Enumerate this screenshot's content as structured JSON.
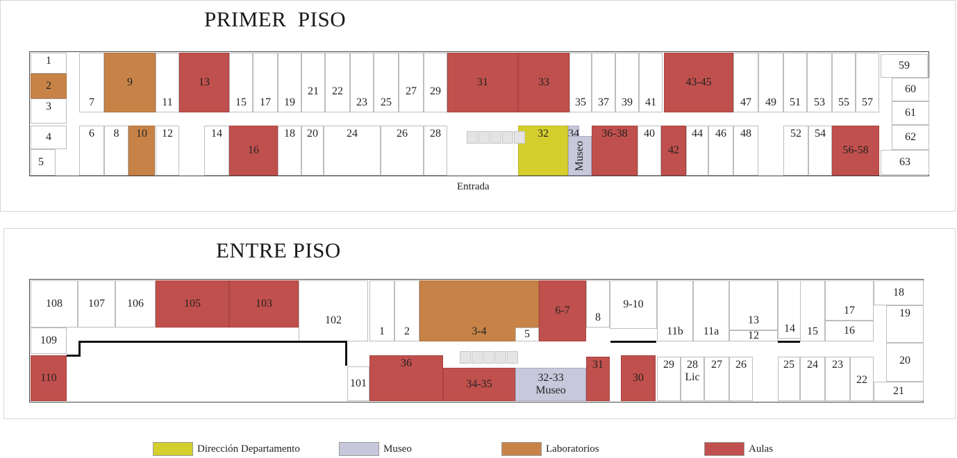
{
  "floors": [
    {
      "title": "PRIMER  PISO",
      "entrance_label": "Entrada",
      "rooms": [
        {
          "id": "p1-1",
          "label": "1",
          "type": "none"
        },
        {
          "id": "p1-2",
          "label": "2",
          "type": "lab"
        },
        {
          "id": "p1-3",
          "label": "3",
          "type": "none"
        },
        {
          "id": "p1-4",
          "label": "4",
          "type": "none"
        },
        {
          "id": "p1-5",
          "label": "5",
          "type": "none"
        },
        {
          "id": "p1-6",
          "label": "6",
          "type": "none"
        },
        {
          "id": "p1-7",
          "label": "7",
          "type": "none"
        },
        {
          "id": "p1-8",
          "label": "8",
          "type": "none"
        },
        {
          "id": "p1-9",
          "label": "9",
          "type": "lab"
        },
        {
          "id": "p1-10",
          "label": "10",
          "type": "lab"
        },
        {
          "id": "p1-11",
          "label": "11",
          "type": "none"
        },
        {
          "id": "p1-12",
          "label": "12",
          "type": "none"
        },
        {
          "id": "p1-13",
          "label": "13",
          "type": "aulas"
        },
        {
          "id": "p1-14",
          "label": "14",
          "type": "none"
        },
        {
          "id": "p1-15",
          "label": "15",
          "type": "none"
        },
        {
          "id": "p1-16",
          "label": "16",
          "type": "aulas"
        },
        {
          "id": "p1-17",
          "label": "17",
          "type": "none"
        },
        {
          "id": "p1-18",
          "label": "18",
          "type": "none"
        },
        {
          "id": "p1-19",
          "label": "19",
          "type": "none"
        },
        {
          "id": "p1-20",
          "label": "20",
          "type": "none"
        },
        {
          "id": "p1-21",
          "label": "21",
          "type": "none"
        },
        {
          "id": "p1-22",
          "label": "22",
          "type": "none"
        },
        {
          "id": "p1-23",
          "label": "23",
          "type": "none"
        },
        {
          "id": "p1-24",
          "label": "24",
          "type": "none"
        },
        {
          "id": "p1-25",
          "label": "25",
          "type": "none"
        },
        {
          "id": "p1-26",
          "label": "26",
          "type": "none"
        },
        {
          "id": "p1-27",
          "label": "27",
          "type": "none"
        },
        {
          "id": "p1-28",
          "label": "28",
          "type": "none"
        },
        {
          "id": "p1-29",
          "label": "29",
          "type": "none"
        },
        {
          "id": "p1-31",
          "label": "31",
          "type": "aulas"
        },
        {
          "id": "p1-32",
          "label": "32",
          "type": "dir"
        },
        {
          "id": "p1-33",
          "label": "33",
          "type": "aulas"
        },
        {
          "id": "p1-34",
          "label": "34",
          "type": "museo"
        },
        {
          "id": "p1-museo",
          "label": "Museo",
          "type": "museo"
        },
        {
          "id": "p1-35",
          "label": "35",
          "type": "none"
        },
        {
          "id": "p1-36-38",
          "label": "36-38",
          "type": "aulas"
        },
        {
          "id": "p1-37",
          "label": "37",
          "type": "none"
        },
        {
          "id": "p1-39",
          "label": "39",
          "type": "none"
        },
        {
          "id": "p1-40",
          "label": "40",
          "type": "none"
        },
        {
          "id": "p1-41",
          "label": "41",
          "type": "none"
        },
        {
          "id": "p1-42",
          "label": "42",
          "type": "aulas"
        },
        {
          "id": "p1-43-45",
          "label": "43-45",
          "type": "aulas"
        },
        {
          "id": "p1-44",
          "label": "44",
          "type": "none"
        },
        {
          "id": "p1-46",
          "label": "46",
          "type": "none"
        },
        {
          "id": "p1-47",
          "label": "47",
          "type": "none"
        },
        {
          "id": "p1-48",
          "label": "48",
          "type": "none"
        },
        {
          "id": "p1-49",
          "label": "49",
          "type": "none"
        },
        {
          "id": "p1-51",
          "label": "51",
          "type": "none"
        },
        {
          "id": "p1-52",
          "label": "52",
          "type": "none"
        },
        {
          "id": "p1-53",
          "label": "53",
          "type": "none"
        },
        {
          "id": "p1-54",
          "label": "54",
          "type": "none"
        },
        {
          "id": "p1-55",
          "label": "55",
          "type": "none"
        },
        {
          "id": "p1-56-58",
          "label": "56-58",
          "type": "aulas"
        },
        {
          "id": "p1-57",
          "label": "57",
          "type": "none"
        },
        {
          "id": "p1-59",
          "label": "59",
          "type": "none"
        },
        {
          "id": "p1-60",
          "label": "60",
          "type": "none"
        },
        {
          "id": "p1-61",
          "label": "61",
          "type": "none"
        },
        {
          "id": "p1-62",
          "label": "62",
          "type": "none"
        },
        {
          "id": "p1-63",
          "label": "63",
          "type": "none"
        }
      ]
    },
    {
      "title": "ENTRE PISO",
      "rooms": [
        {
          "id": "e-108",
          "label": "108",
          "type": "none"
        },
        {
          "id": "e-107",
          "label": "107",
          "type": "none"
        },
        {
          "id": "e-106",
          "label": "106",
          "type": "none"
        },
        {
          "id": "e-105",
          "label": "105",
          "type": "aulas"
        },
        {
          "id": "e-103",
          "label": "103",
          "type": "aulas"
        },
        {
          "id": "e-102",
          "label": "102",
          "type": "none"
        },
        {
          "id": "e-109",
          "label": "109",
          "type": "none"
        },
        {
          "id": "e-110",
          "label": "110",
          "type": "aulas"
        },
        {
          "id": "e-101",
          "label": "101",
          "type": "none"
        },
        {
          "id": "e-1",
          "label": "1",
          "type": "none"
        },
        {
          "id": "e-2",
          "label": "2",
          "type": "none"
        },
        {
          "id": "e-3-4",
          "label": "3-4",
          "type": "lab"
        },
        {
          "id": "e-5",
          "label": "5",
          "type": "none"
        },
        {
          "id": "e-6-7",
          "label": "6-7",
          "type": "aulas"
        },
        {
          "id": "e-8",
          "label": "8",
          "type": "none"
        },
        {
          "id": "e-9-10",
          "label": "9-10",
          "type": "none"
        },
        {
          "id": "e-11b",
          "label": "11b",
          "type": "none"
        },
        {
          "id": "e-11a",
          "label": "11a",
          "type": "none"
        },
        {
          "id": "e-12",
          "label": "12",
          "type": "none"
        },
        {
          "id": "e-13",
          "label": "13",
          "type": "none"
        },
        {
          "id": "e-14",
          "label": "14",
          "type": "none"
        },
        {
          "id": "e-15",
          "label": "15",
          "type": "none"
        },
        {
          "id": "e-16",
          "label": "16",
          "type": "none"
        },
        {
          "id": "e-17",
          "label": "17",
          "type": "none"
        },
        {
          "id": "e-18",
          "label": "18",
          "type": "none"
        },
        {
          "id": "e-19",
          "label": "19",
          "type": "none"
        },
        {
          "id": "e-20",
          "label": "20",
          "type": "none"
        },
        {
          "id": "e-21",
          "label": "21",
          "type": "none"
        },
        {
          "id": "e-22",
          "label": "22",
          "type": "none"
        },
        {
          "id": "e-23",
          "label": "23",
          "type": "none"
        },
        {
          "id": "e-24",
          "label": "24",
          "type": "none"
        },
        {
          "id": "e-25",
          "label": "25",
          "type": "none"
        },
        {
          "id": "e-26",
          "label": "26",
          "type": "none"
        },
        {
          "id": "e-27",
          "label": "27",
          "type": "none"
        },
        {
          "id": "e-28",
          "label": "28\nLic",
          "type": "none"
        },
        {
          "id": "e-29",
          "label": "29",
          "type": "none"
        },
        {
          "id": "e-30",
          "label": "30",
          "type": "aulas"
        },
        {
          "id": "e-31",
          "label": "31",
          "type": "aulas"
        },
        {
          "id": "e-32-33",
          "label": "32-33\nMuseo",
          "type": "museo"
        },
        {
          "id": "e-34-35",
          "label": "34-35",
          "type": "aulas"
        },
        {
          "id": "e-36",
          "label": "36",
          "type": "aulas"
        }
      ]
    }
  ],
  "legend": [
    {
      "label": "Dirección Departamento",
      "color": "#d5cf2e"
    },
    {
      "label": "Museo",
      "color": "#c8c8dc"
    },
    {
      "label": "Laboratorios",
      "color": "#c78347"
    },
    {
      "label": "Aulas",
      "color": "#c0504d"
    }
  ]
}
